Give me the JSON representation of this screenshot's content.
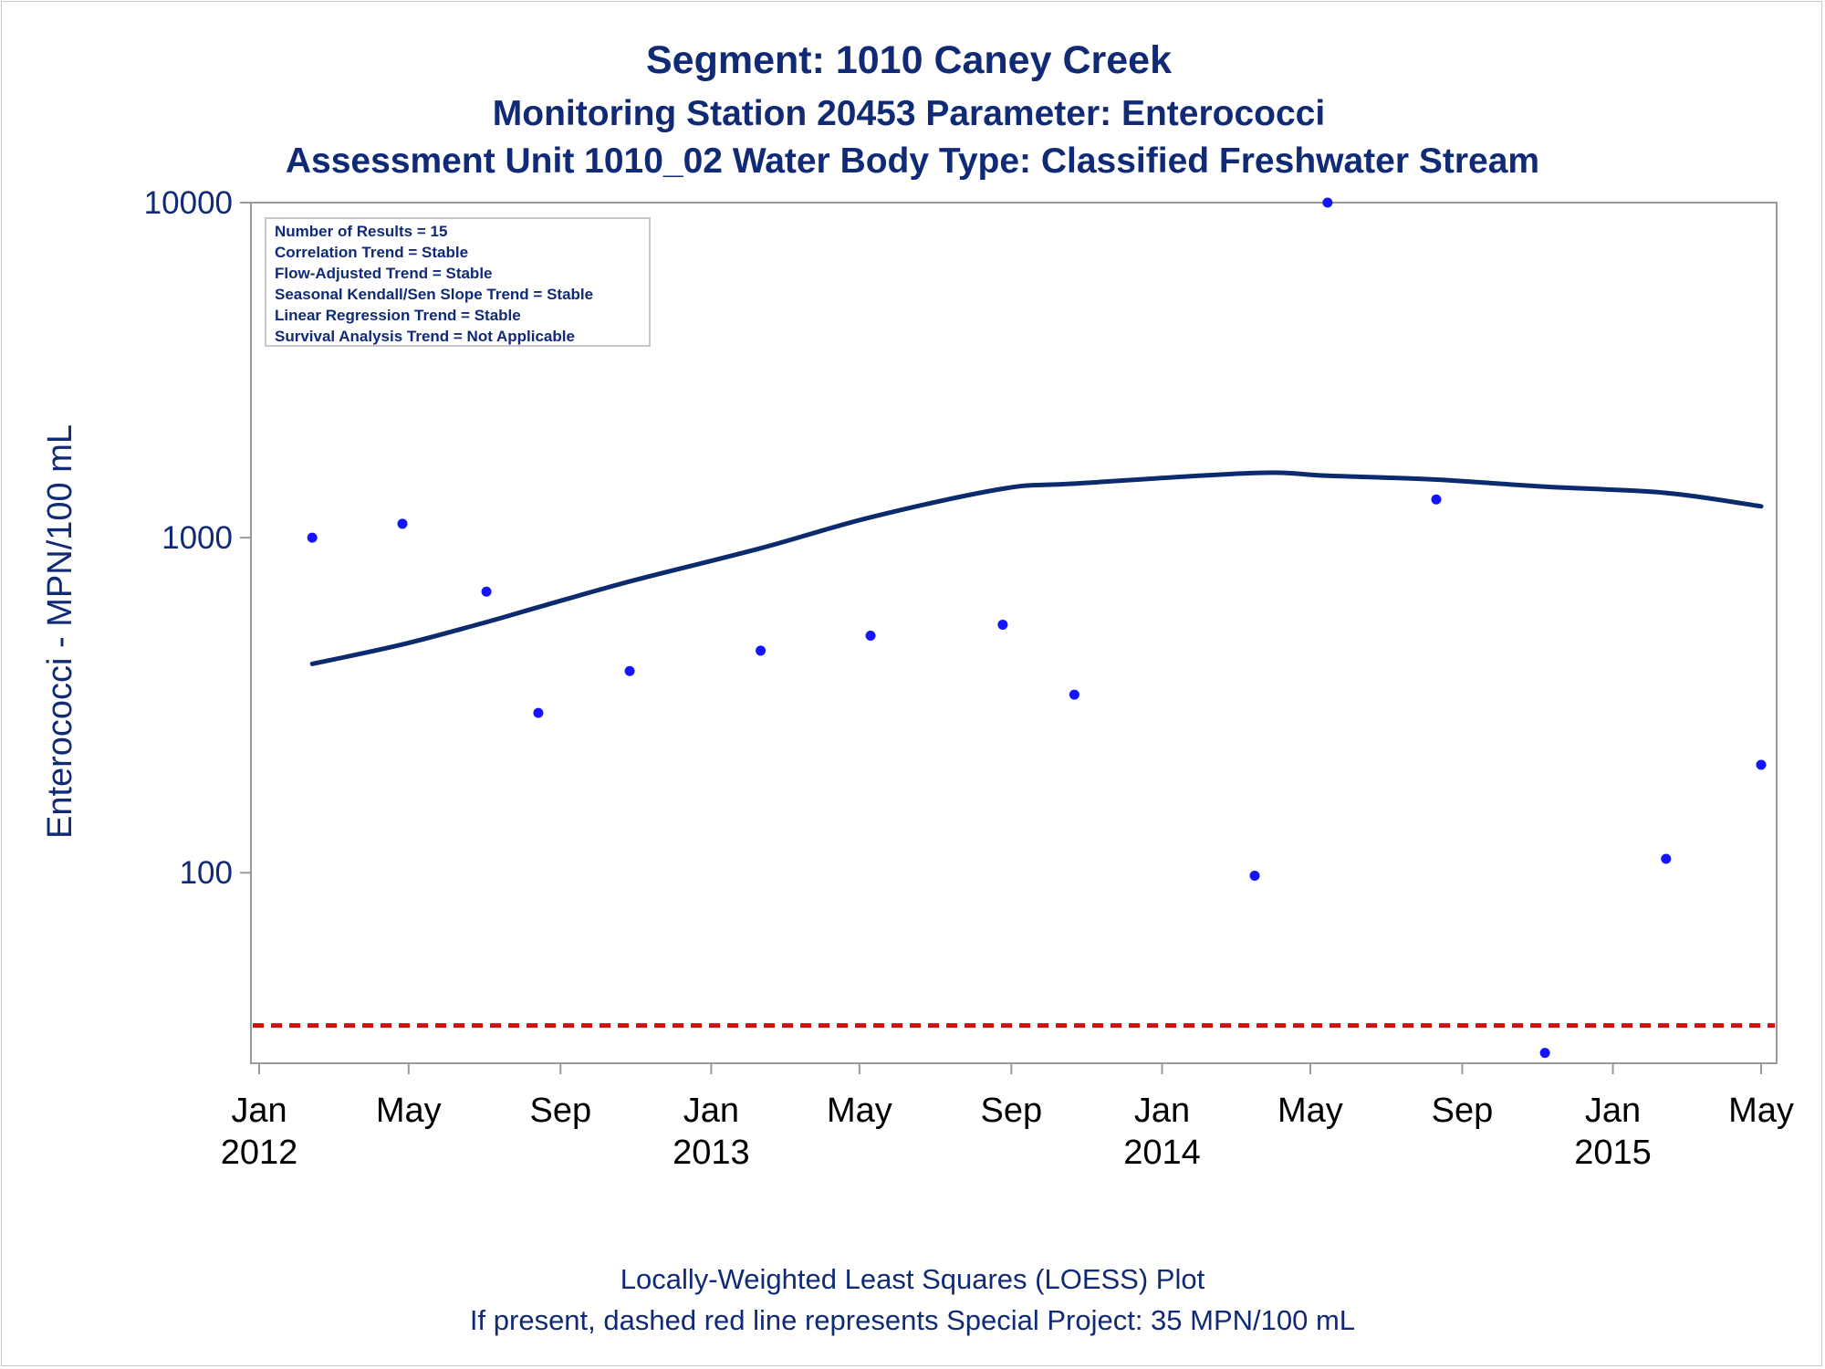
{
  "chart_data": {
    "type": "scatter",
    "title": "Segment: 1010  Caney Creek",
    "subtitle1": "Monitoring Station 20453 Parameter: Enterococci",
    "subtitle2": "Assessment Unit 1010_02   Water Body Type: Classified Freshwater Stream",
    "ylabel": "Enterococci - MPN/100 mL",
    "yscale": "log",
    "ylim": [
      27,
      10000
    ],
    "xlim": [
      "2011-12-28",
      "2015-05-01"
    ],
    "y_ticks": [
      {
        "value": 100,
        "label": "100"
      },
      {
        "value": 1000,
        "label": "1000"
      },
      {
        "value": 10000,
        "label": "10000"
      }
    ],
    "x_ticks": [
      {
        "date": "2012-01-01",
        "line1": "Jan",
        "line2": "2012"
      },
      {
        "date": "2012-05-01",
        "line1": "May",
        "line2": ""
      },
      {
        "date": "2012-09-01",
        "line1": "Sep",
        "line2": ""
      },
      {
        "date": "2013-01-01",
        "line1": "Jan",
        "line2": "2013"
      },
      {
        "date": "2013-05-01",
        "line1": "May",
        "line2": ""
      },
      {
        "date": "2013-09-01",
        "line1": "Sep",
        "line2": ""
      },
      {
        "date": "2014-01-01",
        "line1": "Jan",
        "line2": "2014"
      },
      {
        "date": "2014-05-01",
        "line1": "May",
        "line2": ""
      },
      {
        "date": "2014-09-01",
        "line1": "Sep",
        "line2": ""
      },
      {
        "date": "2015-01-01",
        "line1": "Jan",
        "line2": "2015"
      },
      {
        "date": "2015-05-01",
        "line1": "May",
        "line2": ""
      }
    ],
    "points": [
      {
        "date": "2012-02-13",
        "value": 1000
      },
      {
        "date": "2012-04-26",
        "value": 1100
      },
      {
        "date": "2012-07-03",
        "value": 690
      },
      {
        "date": "2012-08-14",
        "value": 300
      },
      {
        "date": "2012-10-27",
        "value": 400
      },
      {
        "date": "2013-02-10",
        "value": 460
      },
      {
        "date": "2013-05-10",
        "value": 510
      },
      {
        "date": "2013-08-25",
        "value": 550
      },
      {
        "date": "2013-10-22",
        "value": 340
      },
      {
        "date": "2014-03-17",
        "value": 98
      },
      {
        "date": "2014-05-15",
        "value": 10000
      },
      {
        "date": "2014-08-11",
        "value": 1300
      },
      {
        "date": "2014-11-07",
        "value": 29
      },
      {
        "date": "2015-02-13",
        "value": 110
      },
      {
        "date": "2015-05-01",
        "value": 210
      }
    ],
    "loess": [
      {
        "date": "2012-02-13",
        "value": 420
      },
      {
        "date": "2012-04-26",
        "value": 480
      },
      {
        "date": "2012-07-03",
        "value": 560
      },
      {
        "date": "2012-08-14",
        "value": 620
      },
      {
        "date": "2012-10-27",
        "value": 740
      },
      {
        "date": "2013-02-10",
        "value": 930
      },
      {
        "date": "2013-05-10",
        "value": 1150
      },
      {
        "date": "2013-08-25",
        "value": 1400
      },
      {
        "date": "2013-10-22",
        "value": 1450
      },
      {
        "date": "2014-03-17",
        "value": 1560
      },
      {
        "date": "2014-05-15",
        "value": 1530
      },
      {
        "date": "2014-08-11",
        "value": 1490
      },
      {
        "date": "2014-11-07",
        "value": 1420
      },
      {
        "date": "2015-02-13",
        "value": 1360
      },
      {
        "date": "2015-05-01",
        "value": 1240
      }
    ],
    "reference_line": {
      "value": 35,
      "style": "dashed",
      "color": "#cc1111"
    },
    "stats_box": [
      "Number of Results = 15",
      "Correlation Trend = Stable",
      "Flow-Adjusted Trend = Stable",
      "Seasonal Kendall/Sen Slope Trend = Stable",
      "Linear Regression Trend = Stable",
      "Survival Analysis Trend = Not Applicable"
    ],
    "footnote1": "Locally-Weighted Least Squares (LOESS) Plot",
    "footnote2": "If present, dashed red line represents Special Project: 35 MPN/100 mL",
    "colors": {
      "text": "#102a75",
      "points": "#1414ff",
      "loess": "#0c2a6e",
      "reference": "#cc1111",
      "axis": "#999999"
    },
    "grid": false
  }
}
